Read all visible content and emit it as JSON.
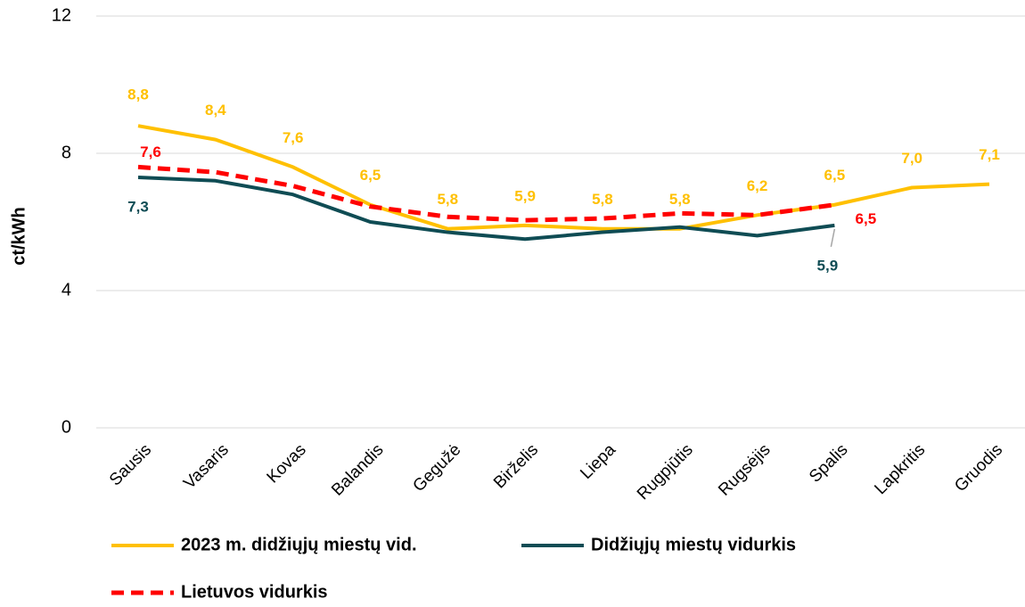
{
  "chart_data": {
    "type": "line",
    "y_label": "ct/kWh",
    "categories": [
      "Sausis",
      "Vasaris",
      "Kovas",
      "Balandis",
      "Gegužė",
      "Birželis",
      "Liepa",
      "Rugpjūtis",
      "Rugsėjis",
      "Spalis",
      "Lapkritis",
      "Gruodis"
    ],
    "series": [
      {
        "name": "2023 m. didžiųjų miestų vid.",
        "color": "#FFC000",
        "dash": false,
        "values": [
          8.8,
          8.4,
          7.6,
          6.5,
          5.8,
          5.9,
          5.8,
          5.8,
          6.2,
          6.5,
          7.0,
          7.1
        ],
        "value_labels": [
          "8,8",
          "8,4",
          "7,6",
          "6,5",
          "5,8",
          "5,9",
          "5,8",
          "5,8",
          "6,2",
          "6,5",
          "7,0",
          "7,1"
        ]
      },
      {
        "name": "Didžiųjų miestų vidurkis",
        "color": "#0F4C54",
        "dash": false,
        "values": [
          7.3,
          7.2,
          6.8,
          6.0,
          5.7,
          5.5,
          5.7,
          5.85,
          5.6,
          5.9,
          null,
          null
        ],
        "value_labels": [
          "7,3",
          null,
          null,
          null,
          null,
          null,
          null,
          null,
          null,
          "5,9",
          null,
          null
        ]
      },
      {
        "name": "Lietuvos vidurkis",
        "color": "#FF0000",
        "dash": true,
        "values": [
          7.6,
          7.45,
          7.05,
          6.45,
          6.15,
          6.05,
          6.1,
          6.25,
          6.2,
          6.5,
          null,
          null
        ],
        "value_labels": [
          "7,6",
          null,
          null,
          null,
          null,
          null,
          null,
          null,
          null,
          "6,5",
          null,
          null
        ]
      }
    ],
    "ylim": [
      0,
      12
    ],
    "yticks": [
      0,
      4,
      8,
      12
    ],
    "grid": true
  }
}
